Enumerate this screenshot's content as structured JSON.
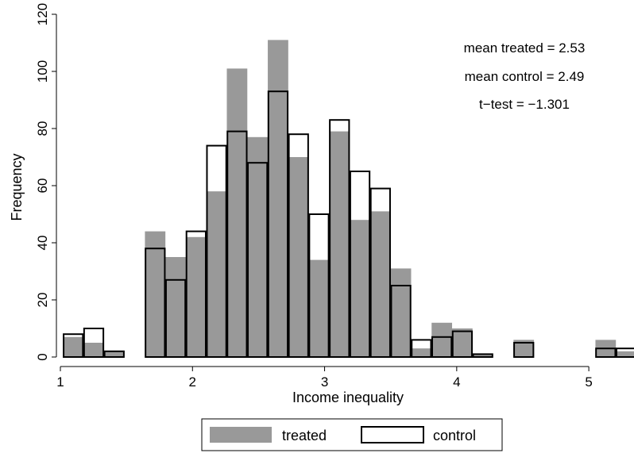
{
  "chart_data": {
    "type": "bar",
    "subtype": "overlaid-histogram",
    "xlabel": "Income inequality",
    "ylabel": "Frequency",
    "xlim": [
      0.97,
      5.33
    ],
    "ylim": [
      0,
      120
    ],
    "xticks": [
      1,
      2,
      3,
      4,
      5
    ],
    "yticks": [
      0,
      20,
      40,
      60,
      80,
      100,
      120
    ],
    "grid": false,
    "bin_width": 0.155,
    "bin_edges_start": 1.02,
    "bin_count": 28,
    "series": [
      {
        "name": "treated",
        "style": "filled",
        "color": "#999999",
        "values": [
          7,
          5,
          2,
          0,
          44,
          35,
          42,
          58,
          101,
          77,
          111,
          70,
          34,
          79,
          48,
          51,
          31,
          3,
          12,
          10,
          1,
          0,
          6,
          0,
          0,
          0,
          6,
          2
        ]
      },
      {
        "name": "control",
        "style": "outline",
        "color": "#000000",
        "values": [
          8,
          10,
          2,
          0,
          38,
          27,
          44,
          74,
          79,
          68,
          93,
          78,
          50,
          83,
          65,
          59,
          25,
          6,
          7,
          9,
          1,
          0,
          5,
          0,
          0,
          0,
          3,
          3
        ]
      }
    ],
    "annotations": [
      "mean treated = 2.53",
      "mean control = 2.49",
      "t−test = −1.301"
    ],
    "legend": {
      "position": "bottom",
      "entries": [
        "treated",
        "control"
      ]
    }
  }
}
